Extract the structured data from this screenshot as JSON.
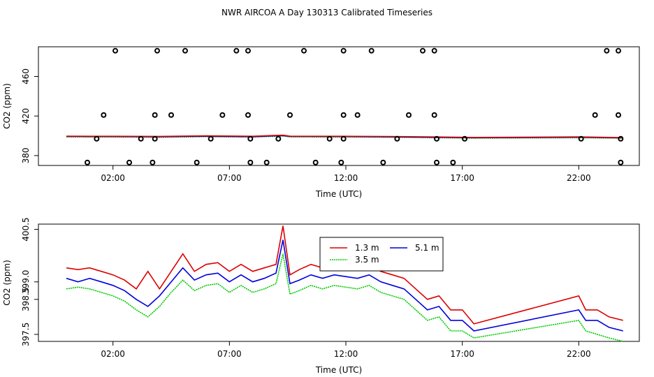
{
  "title": "NWR AIRCOA A  Day 130313  Calibrated Timeseries",
  "colors": {
    "s13": "#dd0000",
    "s35": "#00cc00",
    "s51": "#0000dd",
    "axis": "#000000",
    "points": "#000000"
  },
  "chart_data": [
    {
      "type": "scatter",
      "name": "top-panel",
      "xlabel": "Time (UTC)",
      "ylabel": "CO2 (ppm)",
      "xlim": [
        -1.2,
        24.6
      ],
      "ylim": [
        370,
        490
      ],
      "xticks": [
        2,
        7,
        12,
        17,
        22
      ],
      "xtick_labels": [
        "02:00",
        "07:00",
        "12:00",
        "17:00",
        "22:00"
      ],
      "yticks": [
        380,
        420,
        460
      ],
      "ytick_labels": [
        "380",
        "420",
        "460"
      ],
      "points": [
        {
          "x": 0.9,
          "y": 373
        },
        {
          "x": 1.3,
          "y": 397
        },
        {
          "x": 1.6,
          "y": 421
        },
        {
          "x": 2.1,
          "y": 486
        },
        {
          "x": 2.7,
          "y": 373
        },
        {
          "x": 3.2,
          "y": 397
        },
        {
          "x": 3.7,
          "y": 373
        },
        {
          "x": 3.8,
          "y": 397
        },
        {
          "x": 3.8,
          "y": 421
        },
        {
          "x": 3.9,
          "y": 486
        },
        {
          "x": 4.5,
          "y": 421
        },
        {
          "x": 5.1,
          "y": 486
        },
        {
          "x": 5.6,
          "y": 373
        },
        {
          "x": 6.2,
          "y": 397
        },
        {
          "x": 6.7,
          "y": 421
        },
        {
          "x": 7.3,
          "y": 486
        },
        {
          "x": 7.8,
          "y": 486
        },
        {
          "x": 7.8,
          "y": 421
        },
        {
          "x": 7.9,
          "y": 397
        },
        {
          "x": 7.9,
          "y": 373
        },
        {
          "x": 8.6,
          "y": 373
        },
        {
          "x": 9.1,
          "y": 397
        },
        {
          "x": 9.6,
          "y": 421
        },
        {
          "x": 10.2,
          "y": 486
        },
        {
          "x": 10.7,
          "y": 373
        },
        {
          "x": 11.3,
          "y": 397
        },
        {
          "x": 11.8,
          "y": 373
        },
        {
          "x": 11.9,
          "y": 397
        },
        {
          "x": 11.9,
          "y": 421
        },
        {
          "x": 11.9,
          "y": 486
        },
        {
          "x": 12.5,
          "y": 421
        },
        {
          "x": 13.1,
          "y": 486
        },
        {
          "x": 13.6,
          "y": 373
        },
        {
          "x": 14.2,
          "y": 397
        },
        {
          "x": 14.7,
          "y": 421
        },
        {
          "x": 15.3,
          "y": 486
        },
        {
          "x": 15.8,
          "y": 486
        },
        {
          "x": 15.8,
          "y": 421
        },
        {
          "x": 15.9,
          "y": 397
        },
        {
          "x": 15.9,
          "y": 373
        },
        {
          "x": 16.6,
          "y": 373
        },
        {
          "x": 17.1,
          "y": 397
        },
        {
          "x": 22.1,
          "y": 397
        },
        {
          "x": 22.7,
          "y": 421
        },
        {
          "x": 23.2,
          "y": 486
        },
        {
          "x": 23.7,
          "y": 486
        },
        {
          "x": 23.7,
          "y": 421
        },
        {
          "x": 23.8,
          "y": 397
        },
        {
          "x": 23.8,
          "y": 373
        }
      ],
      "series": [
        {
          "name": "1.3 m",
          "x": [
            0,
            2,
            4,
            6,
            8,
            9.3,
            9.6,
            12,
            14,
            16,
            17.5,
            22,
            23.9
          ],
          "y": [
            399.6,
            399.5,
            399.4,
            399.9,
            399.5,
            400.6,
            399.6,
            399.5,
            399.3,
            398.8,
            398.4,
            398.9,
            398.2
          ]
        },
        {
          "name": "3.5 m",
          "x": [
            0,
            2,
            4,
            6,
            8,
            9.3,
            9.6,
            12,
            14,
            16,
            17.5,
            22,
            23.9
          ],
          "y": [
            398.9,
            398.8,
            398.5,
            399.1,
            398.7,
            399.7,
            398.9,
            398.8,
            398.5,
            398.0,
            397.6,
            398.0,
            397.5
          ]
        },
        {
          "name": "5.1 m",
          "x": [
            0,
            2,
            4,
            6,
            8,
            9.3,
            9.6,
            12,
            14,
            16,
            17.5,
            22,
            23.9
          ],
          "y": [
            399.3,
            399.2,
            399.0,
            399.5,
            399.1,
            400.2,
            399.3,
            399.2,
            398.9,
            398.4,
            398.0,
            398.5,
            397.9
          ]
        }
      ]
    },
    {
      "type": "line",
      "name": "bottom-panel",
      "xlabel": "Time (UTC)",
      "ylabel": "CO2 (ppm)",
      "xlim": [
        -1.2,
        24.6
      ],
      "ylim": [
        397.3,
        400.65
      ],
      "xticks": [
        2,
        7,
        12,
        17,
        22
      ],
      "xtick_labels": [
        "02:00",
        "07:00",
        "12:00",
        "17:00",
        "22:00"
      ],
      "yticks": [
        397.5,
        398.5,
        399.0,
        400.5
      ],
      "ytick_labels": [
        "397.5",
        "398.5",
        "399.0",
        "400.5"
      ],
      "legend": [
        "1.3 m",
        "5.1 m",
        "3.5 m"
      ],
      "legend_position": "top-center",
      "x": [
        0,
        0.5,
        1,
        1.5,
        2,
        2.5,
        3,
        3.5,
        4,
        4.5,
        5,
        5.5,
        6,
        6.5,
        7,
        7.5,
        8,
        8.5,
        9,
        9.3,
        9.6,
        10,
        10.5,
        11,
        11.5,
        12,
        12.5,
        13,
        13.5,
        14,
        14.5,
        15,
        15.5,
        16,
        16.5,
        17,
        17.5,
        22,
        22.3,
        22.8,
        23.3,
        23.9
      ],
      "series": [
        {
          "name": "1.3 m",
          "values": [
            399.4,
            399.35,
            399.4,
            399.3,
            399.2,
            399.05,
            398.8,
            399.3,
            398.8,
            399.3,
            399.8,
            399.3,
            399.5,
            399.55,
            399.3,
            399.5,
            399.3,
            399.4,
            399.5,
            400.6,
            399.2,
            399.35,
            399.5,
            399.4,
            399.5,
            399.45,
            399.4,
            399.5,
            399.3,
            399.2,
            399.1,
            398.8,
            398.5,
            398.6,
            398.2,
            398.2,
            397.8,
            398.6,
            398.2,
            398.2,
            398.0,
            397.9
          ]
        },
        {
          "name": "5.1 m",
          "values": [
            399.1,
            399.0,
            399.1,
            399.0,
            398.9,
            398.75,
            398.5,
            398.3,
            398.6,
            399.0,
            399.4,
            399.05,
            399.2,
            399.25,
            399.0,
            399.2,
            399.0,
            399.1,
            399.25,
            400.2,
            398.95,
            399.05,
            399.2,
            399.1,
            399.2,
            399.15,
            399.1,
            399.2,
            399.0,
            398.9,
            398.8,
            398.5,
            398.2,
            398.3,
            397.9,
            397.9,
            397.6,
            398.2,
            397.9,
            397.9,
            397.7,
            397.6
          ]
        },
        {
          "name": "3.5 m",
          "values": [
            398.8,
            398.85,
            398.8,
            398.7,
            398.6,
            398.45,
            398.2,
            398.0,
            398.3,
            398.7,
            399.05,
            398.75,
            398.9,
            398.95,
            398.7,
            398.9,
            398.7,
            398.8,
            398.95,
            399.8,
            398.65,
            398.75,
            398.9,
            398.8,
            398.9,
            398.85,
            398.8,
            398.9,
            398.7,
            398.6,
            398.5,
            398.2,
            397.9,
            398.0,
            397.6,
            397.6,
            397.4,
            397.9,
            397.6,
            397.5,
            397.4,
            397.3
          ]
        }
      ]
    }
  ]
}
